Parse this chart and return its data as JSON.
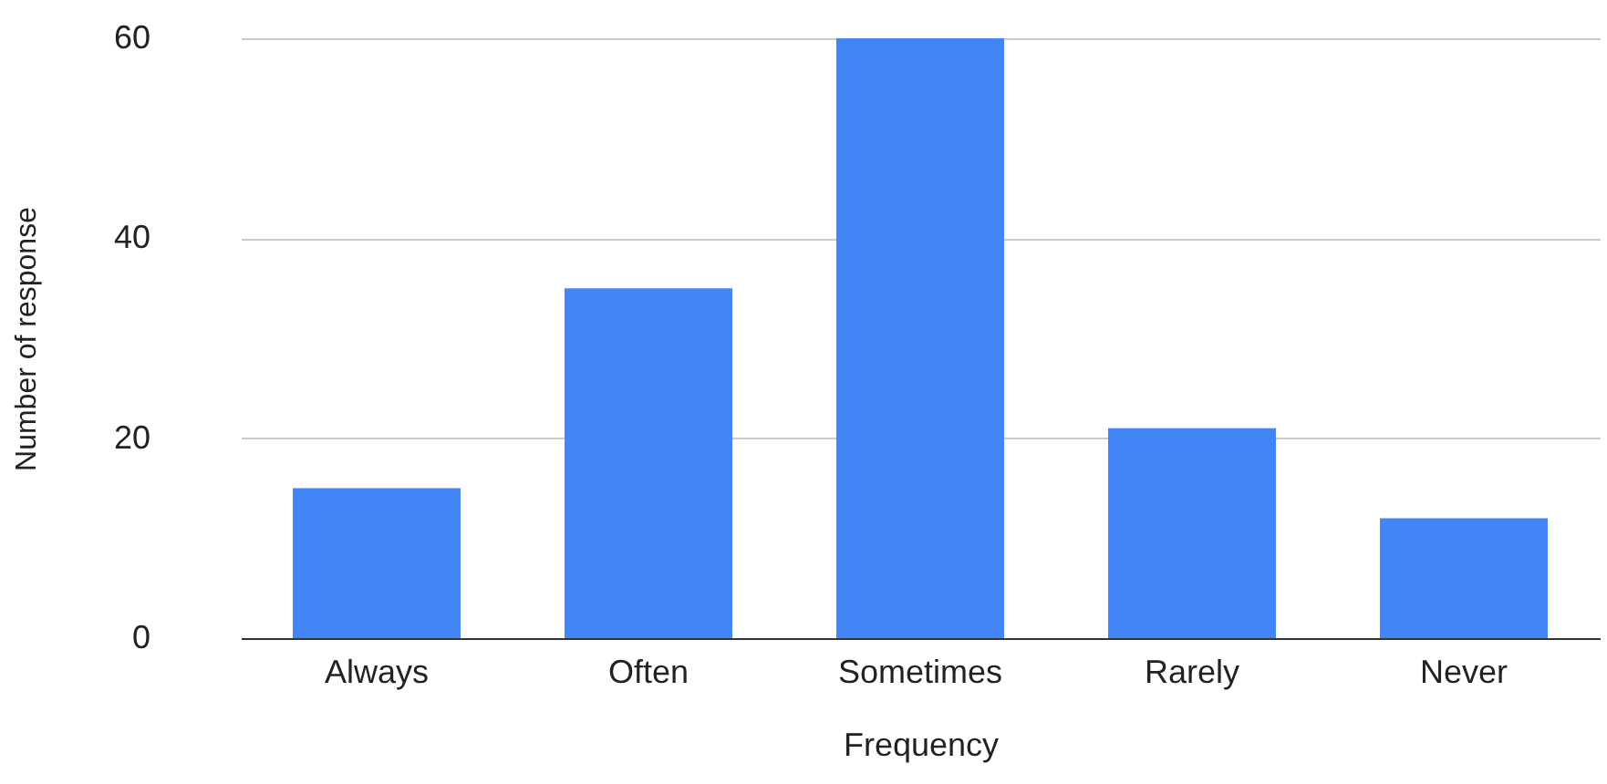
{
  "chart_data": {
    "type": "bar",
    "xlabel": "Frequency",
    "ylabel": "Number of response",
    "categories": [
      "Always",
      "Often",
      "Sometimes",
      "Rarely",
      "Never"
    ],
    "values": [
      15,
      35,
      60,
      21,
      12
    ],
    "color": "#4285f4",
    "ylim": [
      0,
      60
    ],
    "yticks": [
      0,
      20,
      40,
      60
    ],
    "grid": "y"
  }
}
